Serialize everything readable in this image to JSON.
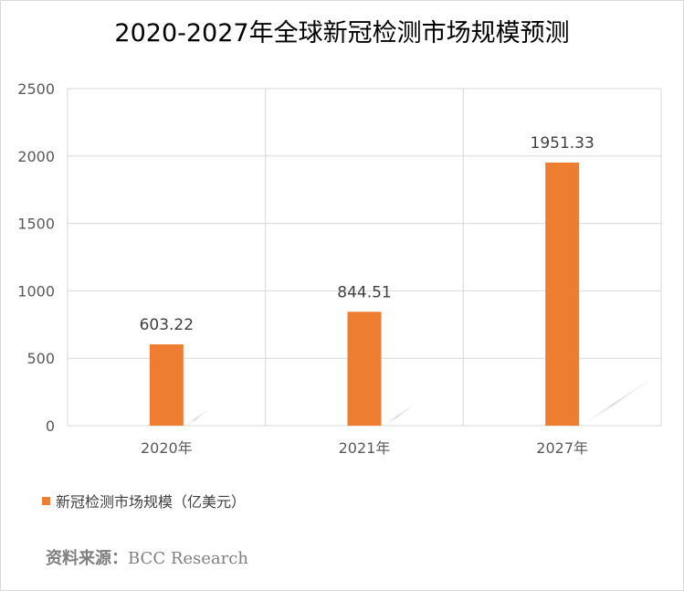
{
  "chart_data": {
    "type": "bar",
    "title": "2020-2027年全球新冠检测市场规模预测",
    "categories": [
      "2020年",
      "2021年",
      "2027年"
    ],
    "series": [
      {
        "name": "新冠检测市场规模（亿美元）",
        "values": [
          603.22,
          844.51,
          1951.33
        ]
      }
    ],
    "data_labels": [
      "603.22",
      "844.51",
      "1951.33"
    ],
    "ylim": [
      0,
      2500
    ],
    "yticks": [
      0,
      500,
      1000,
      1500,
      2000,
      2500
    ],
    "grid": true,
    "legend_position": "bottom-left",
    "bar_color": "#ed7d31"
  },
  "source": {
    "label": "资料来源：",
    "value": "BCC Research"
  }
}
